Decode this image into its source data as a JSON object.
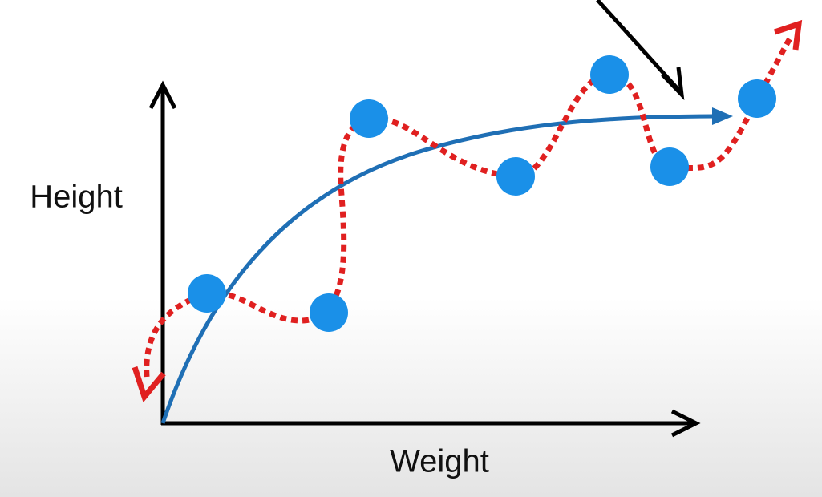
{
  "axes": {
    "y_label": "Height",
    "x_label": "Weight"
  }
}
